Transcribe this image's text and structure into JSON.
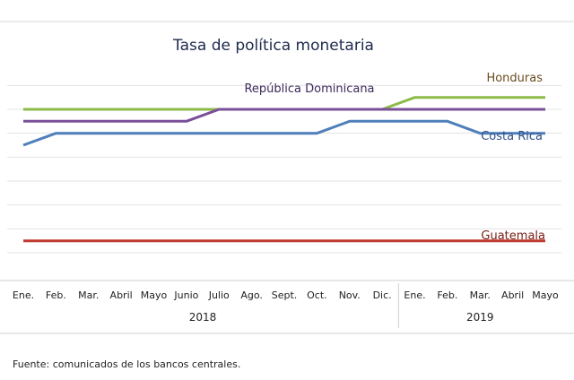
{
  "chart_data": {
    "type": "line",
    "title": "Tasa de política monetaria",
    "categories": [
      "Ene.",
      "Feb.",
      "Mar.",
      "Abril",
      "Mayo",
      "Junio",
      "Julio",
      "Ago.",
      "Sept.",
      "Oct.",
      "Nov.",
      "Dic.",
      "Ene.",
      "Feb.",
      "Mar.",
      "Abril",
      "Mayo"
    ],
    "year_groups": [
      {
        "label": "2018",
        "start": 0,
        "end": 11
      },
      {
        "label": "2019",
        "start": 12,
        "end": 16
      }
    ],
    "series": [
      {
        "name": "Honduras",
        "color": "#8dbb4a",
        "values": [
          5.5,
          5.5,
          5.5,
          5.5,
          5.5,
          5.5,
          5.5,
          5.5,
          5.5,
          5.5,
          5.5,
          5.5,
          5.75,
          5.75,
          5.75,
          5.75,
          5.75
        ]
      },
      {
        "name": "República Dominicana",
        "color": "#7a4f9a",
        "values": [
          5.25,
          5.25,
          5.25,
          5.25,
          5.25,
          5.25,
          5.5,
          5.5,
          5.5,
          5.5,
          5.5,
          5.5,
          5.5,
          5.5,
          5.5,
          5.5,
          5.5
        ]
      },
      {
        "name": "Costa Rica",
        "color": "#4f7fba",
        "values": [
          4.75,
          5.0,
          5.0,
          5.0,
          5.0,
          5.0,
          5.0,
          5.0,
          5.0,
          5.0,
          5.25,
          5.25,
          5.25,
          5.25,
          5.0,
          5.0,
          5.0
        ]
      },
      {
        "name": "Guatemala",
        "color": "#c0392f",
        "values": [
          2.75,
          2.75,
          2.75,
          2.75,
          2.75,
          2.75,
          2.75,
          2.75,
          2.75,
          2.75,
          2.75,
          2.75,
          2.75,
          2.75,
          2.75,
          2.75,
          2.75
        ]
      }
    ],
    "ylim": [
      2.5,
      6.25
    ],
    "grid": true,
    "legend": "inline labels"
  },
  "source_note": "Fuente: comunicados de los bancos centrales."
}
